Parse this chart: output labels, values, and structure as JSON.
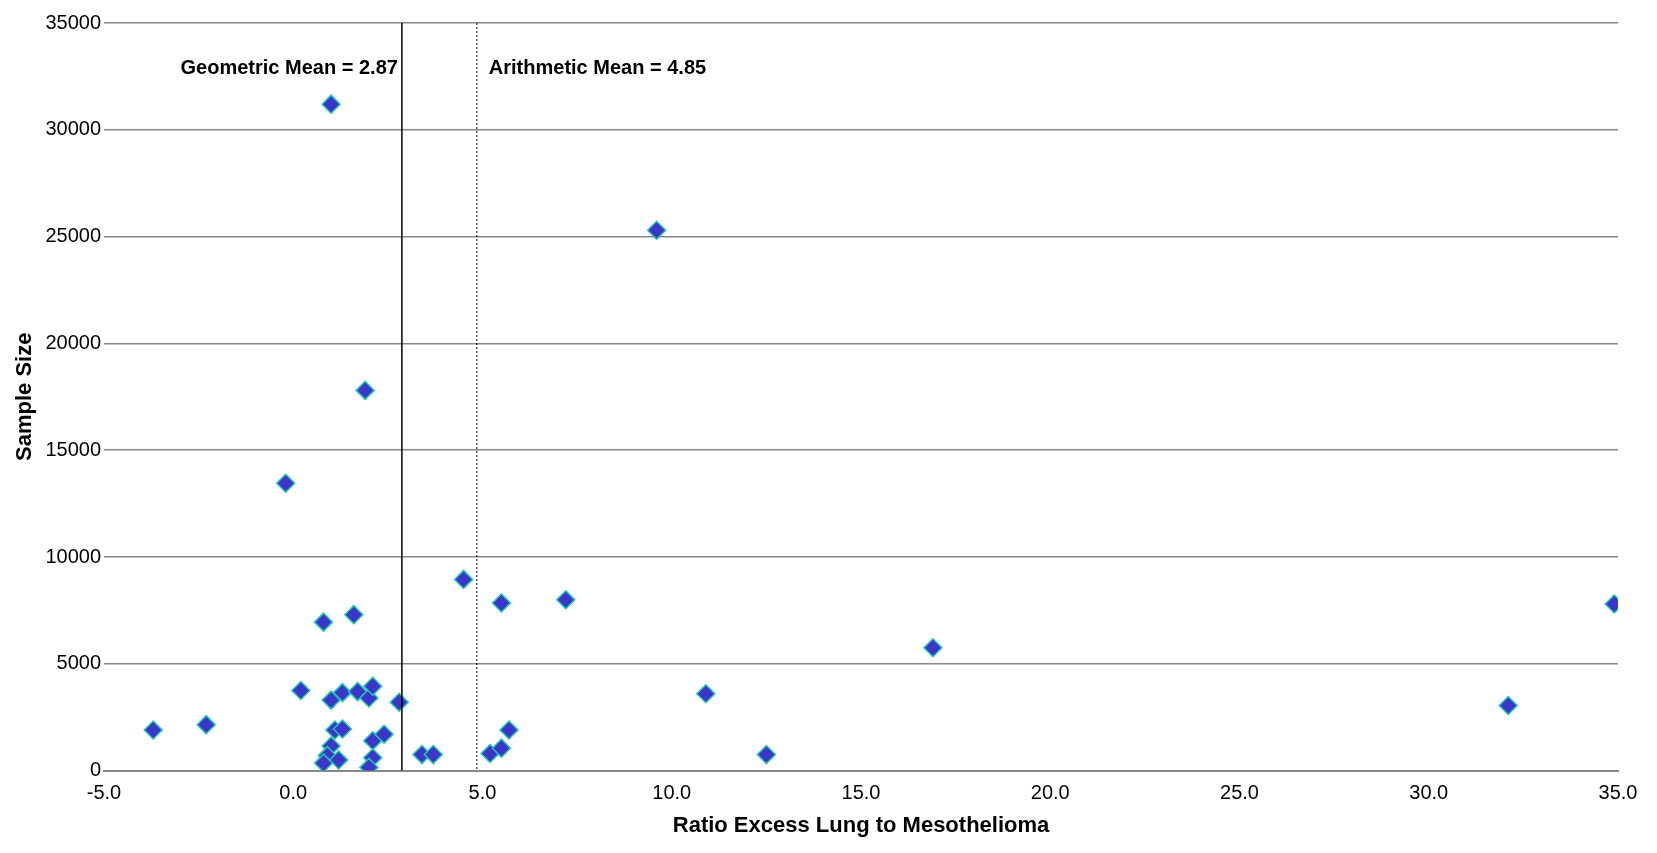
{
  "chart_data": {
    "type": "scatter",
    "xlabel": "Ratio Excess Lung to Mesothelioma",
    "ylabel": "Sample Size",
    "x": [
      1.0,
      9.6,
      1.9,
      -0.2,
      4.5,
      5.5,
      7.2,
      34.9,
      0.8,
      1.6,
      16.9,
      0.2,
      1.0,
      1.3,
      1.7,
      2.0,
      2.1,
      2.8,
      10.9,
      32.1,
      -3.7,
      -2.3,
      1.1,
      1.3,
      2.1,
      2.4,
      5.7,
      1.0,
      0.9,
      0.8,
      1.2,
      2.1,
      2.0,
      3.4,
      3.7,
      5.2,
      5.5,
      12.5
    ],
    "series": [
      {
        "color": "#3b35c8",
        "values": [
          31200,
          25300,
          17800,
          13450,
          8950,
          7850,
          8000,
          7800,
          6950,
          7300,
          5750,
          3750,
          3300,
          3650,
          3700,
          3400,
          3950,
          3200,
          3600,
          3050,
          1900,
          2150,
          1900,
          1950,
          1400,
          1700,
          1900,
          1150,
          700,
          350,
          500,
          600,
          150,
          750,
          750,
          800,
          1050,
          750
        ]
      }
    ],
    "marker": "diamond",
    "grid": "y",
    "legend": false,
    "xlim": [
      -5,
      35
    ],
    "xticks": [
      {
        "value": -5,
        "label": "-5.0"
      },
      {
        "value": 0,
        "label": "0.0"
      },
      {
        "value": 5,
        "label": "5.0"
      },
      {
        "value": 10,
        "label": "10.0"
      },
      {
        "value": 15,
        "label": "15.0"
      },
      {
        "value": 20,
        "label": "20.0"
      },
      {
        "value": 25,
        "label": "25.0"
      },
      {
        "value": 30,
        "label": "30.0"
      },
      {
        "value": 35,
        "label": "35.0"
      }
    ],
    "ylim": [
      0,
      35000
    ],
    "yticks": [
      0,
      5000,
      10000,
      15000,
      20000,
      25000,
      30000,
      35000
    ],
    "ref_lines": [
      {
        "axis": "x",
        "value": 2.87,
        "label": "Geometric Mean = 2.87",
        "color": "#000000",
        "line_style": "solid"
      },
      {
        "axis": "x",
        "value": 4.85,
        "label": "Arithmetic Mean = 4.85",
        "color": "#000000",
        "line_style": "dotted"
      }
    ]
  }
}
